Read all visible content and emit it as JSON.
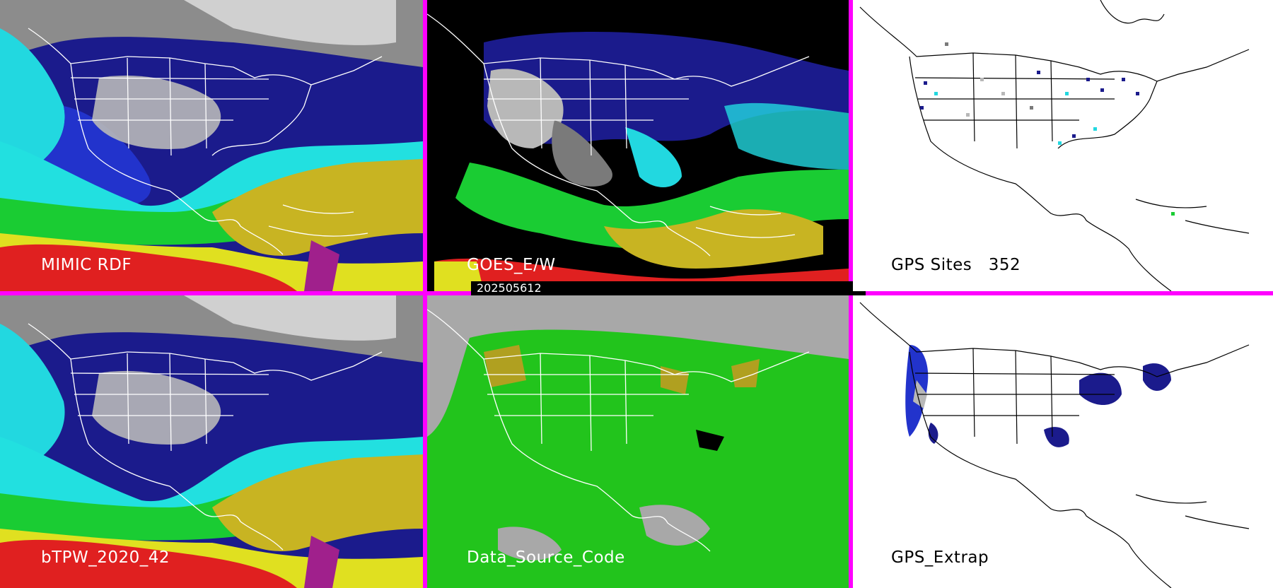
{
  "panels": [
    {
      "id": "p1",
      "label": "MIMIC RDF",
      "style": "tpw"
    },
    {
      "id": "p2",
      "label": "GOES_E/W",
      "style": "goes"
    },
    {
      "id": "p3",
      "label": "GPS Sites",
      "count": "352",
      "style": "gps"
    },
    {
      "id": "p4",
      "label": "bTPW_2020_42",
      "style": "tpw"
    },
    {
      "id": "p5",
      "label": "Data_Source_Code",
      "style": "dsc"
    },
    {
      "id": "p6",
      "label": "GPS_Extrap",
      "style": "extrap"
    }
  ],
  "timestamp": "202505612",
  "colors": {
    "divider": "#ff00ff",
    "tpw_scale": [
      "#ffffff",
      "#b8b8b8",
      "#7a7a7a",
      "#1b1b8c",
      "#2233cc",
      "#1c8fd8",
      "#22e0e0",
      "#1acc33",
      "#77e022",
      "#c8b422",
      "#e0e020",
      "#e02020",
      "#cc0000",
      "#a0208c"
    ],
    "dsc_green": "#22c41c",
    "dsc_olive": "#b0a020",
    "dsc_gray": "#a8a8a8"
  }
}
